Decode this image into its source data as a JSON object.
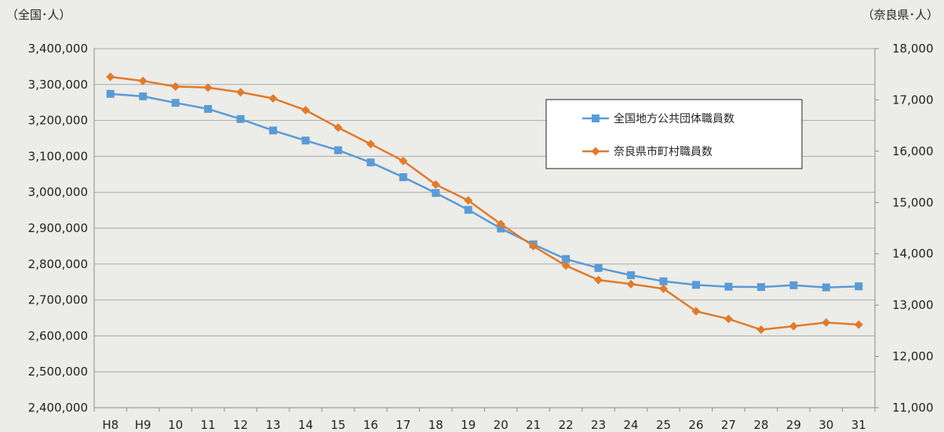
{
  "chart_data": {
    "type": "line",
    "left_axis_unit": "（全国･人）",
    "right_axis_unit": "（奈良県･人）",
    "categories": [
      "H8",
      "H9",
      "10",
      "11",
      "12",
      "13",
      "14",
      "15",
      "16",
      "17",
      "18",
      "19",
      "20",
      "21",
      "22",
      "23",
      "24",
      "25",
      "26",
      "27",
      "28",
      "29",
      "30",
      "31"
    ],
    "left_ylim": [
      2400000,
      3400000
    ],
    "left_ticks": [
      2400000,
      2500000,
      2600000,
      2700000,
      2800000,
      2900000,
      3000000,
      3100000,
      3200000,
      3300000,
      3400000
    ],
    "left_tick_labels": [
      "2,400,000",
      "2,500,000",
      "2,600,000",
      "2,700,000",
      "2,800,000",
      "2,900,000",
      "3,000,000",
      "3,100,000",
      "3,200,000",
      "3,300,000",
      "3,400,000"
    ],
    "right_ylim": [
      11000,
      18000
    ],
    "right_ticks": [
      11000,
      12000,
      13000,
      14000,
      15000,
      16000,
      17000,
      18000
    ],
    "right_tick_labels": [
      "11,000",
      "12,000",
      "13,000",
      "14,000",
      "15,000",
      "16,000",
      "17,000",
      "18,000"
    ],
    "grid": true,
    "legend_position": "top-right",
    "series": [
      {
        "name": "全国地方公共団体職員数",
        "axis": "left",
        "color": "#5b9bd5",
        "marker": "square",
        "values": [
          3274000,
          3267000,
          3249000,
          3232000,
          3204000,
          3172000,
          3144000,
          3117000,
          3083000,
          3042000,
          2998000,
          2951000,
          2899000,
          2855000,
          2814000,
          2789000,
          2769000,
          2752000,
          2742000,
          2737000,
          2736000,
          2741000,
          2735000,
          2738000
        ]
      },
      {
        "name": "奈良県市町村職員数",
        "axis": "right",
        "color": "#e07b2c",
        "marker": "diamond",
        "values": [
          17450,
          17370,
          17260,
          17240,
          17150,
          17030,
          16800,
          16460,
          16140,
          15810,
          15350,
          15040,
          14580,
          14150,
          13770,
          13490,
          13410,
          13320,
          12880,
          12730,
          12520,
          12590,
          12660,
          12620
        ]
      }
    ]
  }
}
